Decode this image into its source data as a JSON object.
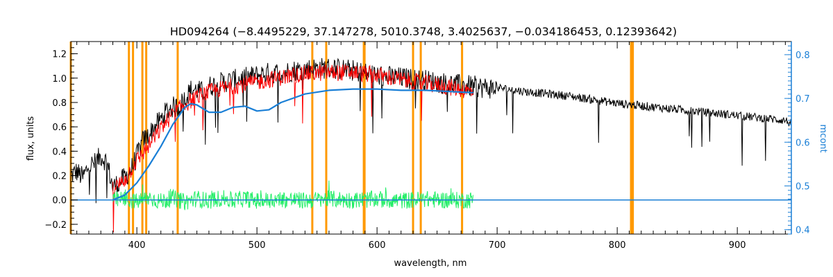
{
  "chart_data": {
    "type": "line",
    "title": "HD094264    (−8.4495229, 37.147278, 5010.3748, 3.4025637, −0.034186453, 0.12393642)",
    "xlabel": "wavelength, nm",
    "ylabel": "flux, units",
    "y2label": "mcont",
    "xlim": [
      345,
      945
    ],
    "ylim": [
      -0.28,
      1.3
    ],
    "y2lim": [
      0.39,
      0.83
    ],
    "xticks": [
      400,
      500,
      600,
      700,
      800,
      900
    ],
    "yticks": [
      -0.2,
      0.0,
      0.2,
      0.4,
      0.6,
      0.8,
      1.0,
      1.2
    ],
    "yticks_labels": [
      "−0.2",
      "0.0",
      "0.2",
      "0.4",
      "0.6",
      "0.8",
      "1.0",
      "1.2"
    ],
    "y2ticks": [
      0.4,
      0.5,
      0.6,
      0.7,
      0.8
    ],
    "y2ticks_labels": [
      "0.4",
      "0.5",
      "0.6",
      "0.7",
      "0.8"
    ],
    "vertical_lines": [
      345,
      393.4,
      396.8,
      404.6,
      407.8,
      434.0,
      546.1,
      557.7,
      589.0,
      589.6,
      630.0,
      636.4,
      670.8,
      811.5,
      813.0
    ],
    "colors": {
      "observed": "#000000",
      "model": "#ff0000",
      "continuum": "#1a7fd6",
      "residuals": "#22ee66",
      "mask_lines": "#ff9900",
      "right_axis": "#1a7fd6"
    },
    "series": [
      {
        "key": "observed",
        "x": [
          345,
          350,
          355,
          360,
          365,
          370,
          375,
          380,
          385,
          390,
          395,
          400,
          405,
          410,
          415,
          420,
          425,
          430,
          435,
          440,
          445,
          450,
          455,
          460,
          470,
          480,
          490,
          500,
          510,
          520,
          530,
          540,
          550,
          560,
          570,
          580,
          590,
          600,
          620,
          640,
          660,
          680,
          700,
          720,
          740,
          760,
          780,
          800,
          820,
          840,
          860,
          880,
          900,
          920,
          940,
          945
        ],
        "y": [
          0.22,
          0.25,
          0.2,
          0.3,
          0.32,
          0.38,
          0.33,
          0.12,
          0.16,
          0.2,
          0.26,
          0.38,
          0.5,
          0.55,
          0.62,
          0.68,
          0.75,
          0.78,
          0.78,
          0.85,
          0.92,
          0.92,
          0.9,
          0.95,
          0.98,
          1.0,
          1.02,
          1.04,
          1.06,
          1.06,
          1.08,
          1.09,
          1.1,
          1.1,
          1.09,
          1.08,
          1.06,
          1.04,
          1.02,
          1.0,
          0.97,
          0.95,
          0.93,
          0.9,
          0.88,
          0.86,
          0.83,
          0.8,
          0.78,
          0.76,
          0.74,
          0.72,
          0.7,
          0.68,
          0.66,
          0.63
        ]
      },
      {
        "key": "model",
        "x": [
          380,
          390,
          400,
          410,
          420,
          430,
          440,
          450,
          460,
          480,
          500,
          520,
          540,
          560,
          580,
          600,
          620,
          640,
          660,
          680
        ],
        "y": [
          0.1,
          0.18,
          0.34,
          0.46,
          0.6,
          0.72,
          0.8,
          0.86,
          0.9,
          0.95,
          0.98,
          1.02,
          1.05,
          1.06,
          1.06,
          1.04,
          1.0,
          0.97,
          0.94,
          0.9
        ]
      },
      {
        "key": "continuum",
        "x": [
          380,
          390,
          400,
          410,
          420,
          430,
          440,
          445,
          450,
          460,
          470,
          480,
          490,
          500,
          510,
          520,
          540,
          560,
          580,
          600,
          620,
          640,
          660,
          680
        ],
        "y": [
          0.0,
          0.04,
          0.14,
          0.28,
          0.44,
          0.62,
          0.76,
          0.79,
          0.78,
          0.72,
          0.72,
          0.76,
          0.77,
          0.73,
          0.74,
          0.8,
          0.87,
          0.9,
          0.91,
          0.91,
          0.9,
          0.9,
          0.89,
          0.88
        ]
      },
      {
        "key": "continuum_baseline",
        "x": [
          345,
          380,
          680,
          945
        ],
        "y": [
          0.0,
          0.0,
          0.0,
          0.0
        ]
      },
      {
        "key": "residuals",
        "x": [
          380,
          390,
          400,
          410,
          420,
          430,
          440,
          450,
          460,
          470,
          480,
          490,
          500,
          520,
          540,
          560,
          580,
          600,
          620,
          640,
          660,
          680
        ],
        "y": [
          -0.02,
          0.03,
          -0.05,
          0.06,
          -0.04,
          0.05,
          -0.06,
          0.04,
          -0.03,
          0.05,
          -0.02,
          0.04,
          -0.03,
          0.02,
          -0.02,
          0.03,
          -0.01,
          0.02,
          -0.02,
          0.02,
          -0.01,
          0.0
        ]
      }
    ]
  }
}
